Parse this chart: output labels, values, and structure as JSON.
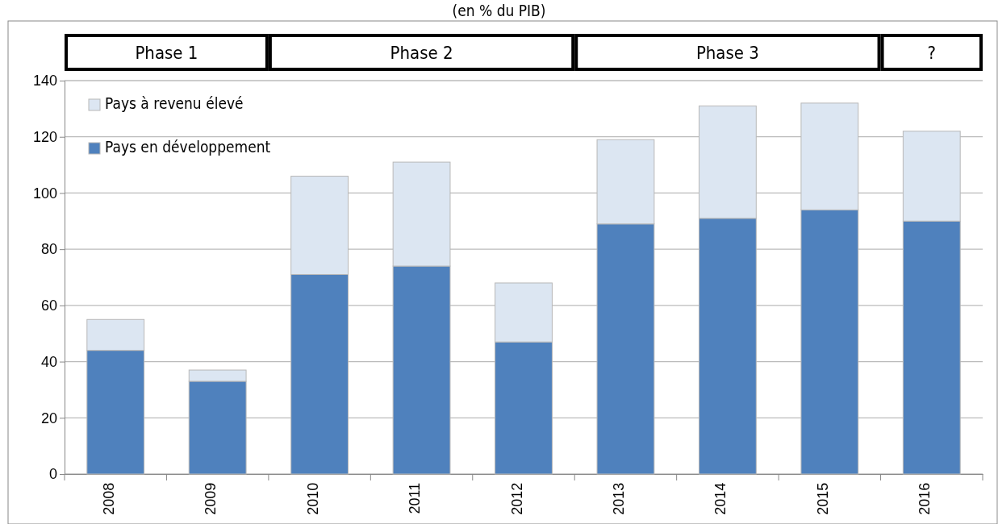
{
  "chart_data": {
    "type": "bar",
    "title": "(en % du PIB)",
    "stacked": true,
    "categories": [
      "2008",
      "2009",
      "2010",
      "2011",
      "2012",
      "2013",
      "2014",
      "2015",
      "2016"
    ],
    "series": [
      {
        "name": "Pays en développement",
        "color": "#4f81bd",
        "values": [
          44,
          33,
          71,
          74,
          47,
          89,
          91,
          94,
          90
        ]
      },
      {
        "name": "Pays à revenu élevé",
        "color": "#dce6f2",
        "values": [
          11,
          4,
          35,
          37,
          21,
          30,
          40,
          38,
          32
        ]
      }
    ],
    "ylim": [
      0,
      140
    ],
    "yticks": [
      0,
      20,
      40,
      60,
      80,
      100,
      120,
      140
    ],
    "grid": "y",
    "legend": "top left",
    "annotations": [
      "Phase 1",
      "Phase 2",
      "Phase 3",
      "?"
    ]
  }
}
